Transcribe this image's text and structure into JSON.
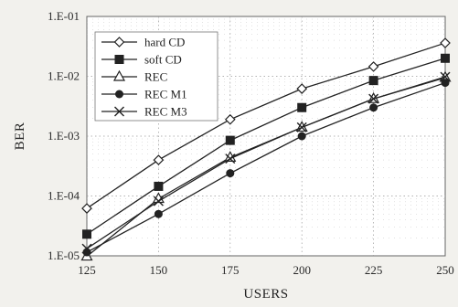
{
  "chart_data": {
    "type": "line",
    "xlabel": "USERS",
    "ylabel": "BER",
    "x": [
      125,
      150,
      175,
      200,
      225,
      250
    ],
    "x_ticks": [
      "125",
      "150",
      "175",
      "200",
      "225",
      "250"
    ],
    "xlim": [
      125,
      250
    ],
    "y_scale": "log",
    "ylim": [
      1e-05,
      0.1
    ],
    "y_ticks": [
      {
        "value": 0.1,
        "label": "1.E-01"
      },
      {
        "value": 0.01,
        "label": "1.E-02"
      },
      {
        "value": 0.001,
        "label": "1.E-03"
      },
      {
        "value": 0.0001,
        "label": "1.E-04"
      },
      {
        "value": 1e-05,
        "label": "1.E-05"
      }
    ],
    "grid": true,
    "legend_position": "top-left",
    "series": [
      {
        "name": "hard CD",
        "marker": "diamond-open",
        "values": [
          6.2e-05,
          0.0004,
          0.0019,
          0.0062,
          0.0145,
          0.036
        ]
      },
      {
        "name": "soft CD",
        "marker": "square-filled",
        "values": [
          2.3e-05,
          0.000145,
          0.00085,
          0.003,
          0.0085,
          0.02
        ]
      },
      {
        "name": "REC",
        "marker": "triangle-open",
        "values": [
          9.8e-06,
          9e-05,
          0.00044,
          0.0014,
          0.0042,
          0.0095
        ]
      },
      {
        "name": "REC M1",
        "marker": "circle-filled",
        "values": [
          1.15e-05,
          5e-05,
          0.00024,
          0.001,
          0.003,
          0.0078
        ]
      },
      {
        "name": "REC M3",
        "marker": "x",
        "values": [
          1.32e-05,
          8.2e-05,
          0.00042,
          0.0014,
          0.0042,
          0.0098
        ]
      }
    ]
  }
}
